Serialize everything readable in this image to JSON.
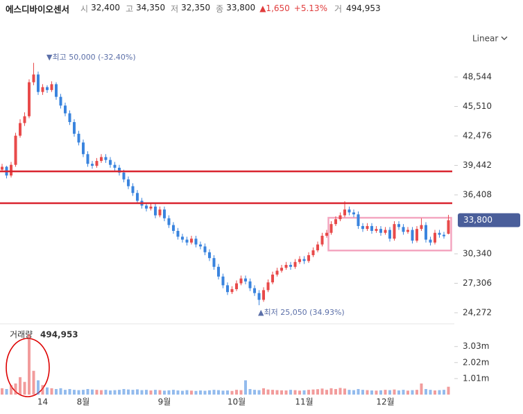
{
  "header": {
    "name": "에스디바이오센서",
    "items": [
      {
        "label": "시",
        "value": "32,400"
      },
      {
        "label": "고",
        "value": "34,350"
      },
      {
        "label": "저",
        "value": "32,350"
      },
      {
        "label": "종",
        "value": "33,800"
      }
    ],
    "change": "▲1,650",
    "change_pct": "+5.13%",
    "volume_label": "거",
    "volume": "494,953"
  },
  "chart_data": {
    "type": "candlestick",
    "scale_label": "Linear",
    "log": false,
    "up_color": "#e84a4a",
    "down_color": "#3a84de",
    "high_label": "▼최고 50,000 (-32.40%)",
    "low_label": "▲최저 25,050 (34.93%)",
    "last_label": "33,800",
    "last_color": "#4a5e9a",
    "categories": [
      null,
      null,
      null,
      null,
      null,
      null,
      null,
      null,
      null,
      "14",
      null,
      null,
      null,
      null,
      null,
      null,
      null,
      null,
      "8월",
      null,
      null,
      null,
      null,
      null,
      null,
      null,
      null,
      null,
      null,
      null,
      null,
      null,
      null,
      null,
      null,
      null,
      "9월",
      null,
      null,
      null,
      null,
      null,
      null,
      null,
      null,
      null,
      null,
      null,
      null,
      null,
      null,
      null,
      "10월",
      null,
      null,
      null,
      null,
      null,
      null,
      null,
      null,
      null,
      null,
      null,
      null,
      null,
      null,
      "11월",
      null,
      null,
      null,
      null,
      null,
      null,
      null,
      null,
      null,
      null,
      null,
      null,
      null,
      null,
      null,
      null,
      null,
      "12월",
      null,
      null,
      null,
      null,
      null,
      null,
      null,
      null,
      null,
      null,
      null,
      null,
      null,
      null
    ],
    "ohlc": [
      [
        39000,
        39600,
        38800,
        39300
      ],
      [
        39300,
        39400,
        38100,
        38400
      ],
      [
        38400,
        39800,
        38200,
        39500
      ],
      [
        39500,
        42800,
        39300,
        42500
      ],
      [
        42500,
        44200,
        42300,
        43800
      ],
      [
        43800,
        44900,
        43500,
        44500
      ],
      [
        44500,
        48300,
        44300,
        48000
      ],
      [
        48000,
        50000,
        47700,
        48800
      ],
      [
        48800,
        49100,
        46700,
        47000
      ],
      [
        47000,
        47800,
        46700,
        47500
      ],
      [
        47500,
        47700,
        46900,
        47200
      ],
      [
        47200,
        48100,
        47000,
        47800
      ],
      [
        47800,
        48000,
        46200,
        46500
      ],
      [
        46500,
        46800,
        45300,
        45600
      ],
      [
        45600,
        45900,
        44500,
        44800
      ],
      [
        44800,
        45100,
        43600,
        43900
      ],
      [
        43900,
        44200,
        42400,
        42700
      ],
      [
        42700,
        43000,
        41500,
        41800
      ],
      [
        41800,
        42100,
        40300,
        40600
      ],
      [
        40600,
        40900,
        39300,
        39600
      ],
      [
        39600,
        39900,
        39100,
        39400
      ],
      [
        39400,
        40200,
        39200,
        39900
      ],
      [
        39900,
        40600,
        39700,
        40300
      ],
      [
        40300,
        40600,
        39700,
        40000
      ],
      [
        40000,
        40300,
        39200,
        39500
      ],
      [
        39500,
        39800,
        38900,
        39200
      ],
      [
        39200,
        39500,
        38400,
        38700
      ],
      [
        38700,
        39000,
        37700,
        38000
      ],
      [
        38000,
        38300,
        37000,
        37300
      ],
      [
        37300,
        37600,
        36300,
        36600
      ],
      [
        36600,
        36900,
        35500,
        35800
      ],
      [
        35800,
        36100,
        35000,
        35300
      ],
      [
        35300,
        35600,
        34700,
        35000
      ],
      [
        35000,
        35500,
        34800,
        35200
      ],
      [
        35200,
        35500,
        34000,
        34300
      ],
      [
        34300,
        35200,
        34100,
        34900
      ],
      [
        34900,
        35200,
        33700,
        34000
      ],
      [
        34000,
        34300,
        33000,
        33300
      ],
      [
        33300,
        33600,
        32400,
        32700
      ],
      [
        32700,
        33000,
        31800,
        32100
      ],
      [
        32100,
        32400,
        31500,
        31800
      ],
      [
        31800,
        32100,
        31200,
        31500
      ],
      [
        31500,
        32200,
        31300,
        31900
      ],
      [
        31900,
        32200,
        31000,
        31300
      ],
      [
        31300,
        31600,
        30800,
        31100
      ],
      [
        31100,
        31400,
        30200,
        30500
      ],
      [
        30500,
        30800,
        29600,
        29900
      ],
      [
        29900,
        30200,
        28700,
        29000
      ],
      [
        29000,
        29300,
        27700,
        28000
      ],
      [
        28000,
        28300,
        26800,
        27100
      ],
      [
        27100,
        27400,
        26100,
        26400
      ],
      [
        26400,
        27000,
        26200,
        26700
      ],
      [
        26700,
        27600,
        26500,
        27300
      ],
      [
        27300,
        28100,
        27100,
        27800
      ],
      [
        27800,
        28100,
        27200,
        27500
      ],
      [
        27500,
        27800,
        26500,
        26800
      ],
      [
        26800,
        27100,
        26000,
        26300
      ],
      [
        26300,
        26600,
        25050,
        25600
      ],
      [
        25600,
        26900,
        25400,
        26600
      ],
      [
        26600,
        27700,
        26400,
        27400
      ],
      [
        27400,
        28500,
        27200,
        28200
      ],
      [
        28200,
        28900,
        28000,
        28600
      ],
      [
        28600,
        29200,
        28400,
        28900
      ],
      [
        28900,
        29500,
        28700,
        29200
      ],
      [
        29200,
        29500,
        28700,
        29000
      ],
      [
        29000,
        29800,
        28800,
        29500
      ],
      [
        29500,
        30100,
        29300,
        29800
      ],
      [
        29800,
        30100,
        29300,
        29600
      ],
      [
        29600,
        30500,
        29400,
        30200
      ],
      [
        30200,
        31000,
        30000,
        30700
      ],
      [
        30700,
        31600,
        30500,
        31300
      ],
      [
        31300,
        32500,
        31100,
        32200
      ],
      [
        32200,
        32800,
        32000,
        32500
      ],
      [
        32500,
        33700,
        32300,
        33400
      ],
      [
        33400,
        34200,
        33200,
        33900
      ],
      [
        33900,
        34600,
        33700,
        34300
      ],
      [
        34300,
        35750,
        34100,
        34900
      ],
      [
        34900,
        35200,
        34300,
        34600
      ],
      [
        34600,
        34900,
        34100,
        34400
      ],
      [
        34400,
        34700,
        32900,
        33200
      ],
      [
        33200,
        33500,
        32600,
        32900
      ],
      [
        32900,
        33500,
        32700,
        33200
      ],
      [
        33200,
        33500,
        32400,
        32700
      ],
      [
        32700,
        33200,
        32500,
        32900
      ],
      [
        32900,
        33200,
        32200,
        32500
      ],
      [
        32500,
        33100,
        32300,
        32800
      ],
      [
        32800,
        33100,
        31600,
        31900
      ],
      [
        31900,
        33700,
        31700,
        33400
      ],
      [
        33400,
        33700,
        32800,
        33100
      ],
      [
        33100,
        33400,
        32300,
        32600
      ],
      [
        32600,
        33100,
        32400,
        32800
      ],
      [
        32800,
        33100,
        31400,
        31700
      ],
      [
        31700,
        33200,
        31500,
        32900
      ],
      [
        32900,
        34000,
        32700,
        33300
      ],
      [
        33300,
        33600,
        31500,
        31800
      ],
      [
        31800,
        32100,
        31200,
        31500
      ],
      [
        31500,
        32800,
        31300,
        32500
      ],
      [
        32500,
        32800,
        32000,
        32300
      ],
      [
        32300,
        32600,
        31900,
        32150
      ],
      [
        32400,
        34350,
        32350,
        33800
      ]
    ],
    "ylim": [
      23273,
      53613
    ],
    "yticks": [
      {
        "value": 48544,
        "label": "48,544"
      },
      {
        "value": 45510,
        "label": "45,510"
      },
      {
        "value": 42476,
        "label": "42,476"
      },
      {
        "value": 39442,
        "label": "39,442"
      },
      {
        "value": 36408,
        "label": "36,408"
      },
      {
        "value": 30340,
        "label": "30,340"
      },
      {
        "value": 27306,
        "label": "27,306"
      },
      {
        "value": 24272,
        "label": "24,272"
      }
    ],
    "hlines": [
      38830,
      35550
    ],
    "hline_color": "#d9232d",
    "box": {
      "from": 73,
      "to": 99,
      "high": 34050,
      "low": 30680,
      "color": "#f4a6c0"
    },
    "volume": {
      "label": "거래량",
      "last_label": "494,953",
      "ylim": [
        0,
        4330000
      ],
      "yticks": [
        {
          "value": 1010000,
          "label": "1.01m"
        },
        {
          "value": 2020000,
          "label": "2.02m"
        },
        {
          "value": 3030000,
          "label": "3.03m"
        }
      ],
      "values": [
        400000,
        350000,
        600000,
        700000,
        1100000,
        800000,
        3800000,
        1500000,
        900000,
        600000,
        450000,
        400000,
        350000,
        400000,
        300000,
        350000,
        300000,
        280000,
        300000,
        350000,
        320000,
        300000,
        280000,
        300000,
        260000,
        280000,
        300000,
        350000,
        320000,
        300000,
        330000,
        280000,
        300000,
        260000,
        300000,
        280000,
        250000,
        270000,
        300000,
        260000,
        240000,
        280000,
        250000,
        230000,
        260000,
        240000,
        270000,
        300000,
        280000,
        250000,
        260000,
        230000,
        300000,
        280000,
        900000,
        350000,
        300000,
        280000,
        400000,
        320000,
        300000,
        280000,
        270000,
        260000,
        300000,
        280000,
        250000,
        270000,
        300000,
        320000,
        340000,
        380000,
        300000,
        400000,
        350000,
        420000,
        380000,
        300000,
        280000,
        350000,
        300000,
        280000,
        260000,
        250000,
        270000,
        300000,
        280000,
        320000,
        260000,
        300000,
        250000,
        280000,
        300000,
        700000,
        350000,
        300000,
        260000,
        280000,
        300000,
        494953
      ]
    }
  }
}
